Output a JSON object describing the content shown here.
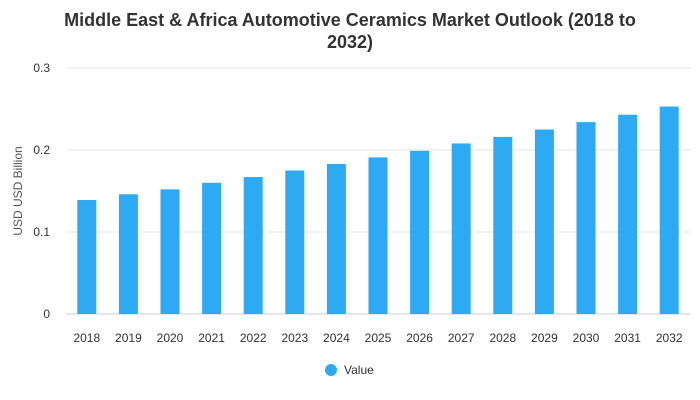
{
  "chart_data": {
    "type": "bar",
    "title_line1": "Middle East & Africa Automotive Ceramics Market Outlook (2018 to",
    "title_line2": "2032)",
    "ylabel": "USD USD Billion",
    "xlabel": "",
    "categories": [
      "2018",
      "2019",
      "2020",
      "2021",
      "2022",
      "2023",
      "2024",
      "2025",
      "2026",
      "2027",
      "2028",
      "2029",
      "2030",
      "2031",
      "2032"
    ],
    "series": [
      {
        "name": "Value",
        "color": "#2eaaf3",
        "values": [
          0.139,
          0.146,
          0.152,
          0.16,
          0.167,
          0.175,
          0.183,
          0.191,
          0.199,
          0.208,
          0.216,
          0.225,
          0.234,
          0.243,
          0.253
        ]
      }
    ],
    "ylim": [
      0,
      0.3
    ],
    "yticks": [
      "0",
      "0.1",
      "0.2",
      "0.3"
    ],
    "ytick_values": [
      0,
      0.1,
      0.2,
      0.3
    ],
    "grid": true,
    "legend_position": "bottom-center"
  }
}
